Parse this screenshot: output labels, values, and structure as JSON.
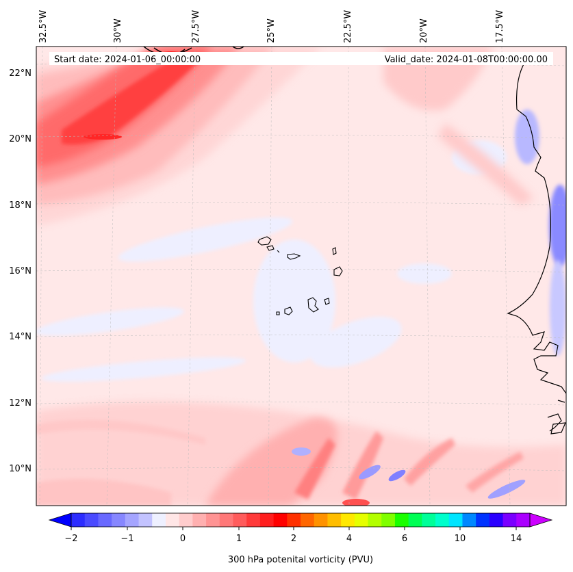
{
  "header": {
    "start_date": "Start date: 2024-01-06_00:00:00",
    "valid_date": "Valid_date: 2024-01-08T00:00:00.00"
  },
  "map": {
    "lon_labels": [
      "32.5°W",
      "30°W",
      "27.5°W",
      "25°W",
      "22.5°W",
      "20°W",
      "17.5°W"
    ],
    "lat_labels": [
      "22°N",
      "20°N",
      "18°N",
      "16°N",
      "14°N",
      "12°N",
      "10°N"
    ],
    "field": "300 hPa potential vorticity"
  },
  "colorbar": {
    "ticks": [
      "−2",
      "−1",
      "0",
      "1",
      "2",
      "4",
      "6",
      "10",
      "14"
    ],
    "label": "300 hPa potenital vorticity (PVU)",
    "colors": [
      "#0000ff",
      "#2929ff",
      "#5252ff",
      "#7a7aff",
      "#a3a3ff",
      "#cccccf",
      "#eeeeff",
      "#ffe6e6",
      "#ffcccc",
      "#ffadad",
      "#ff8a8a",
      "#ff6666",
      "#ff4444",
      "#ff2222",
      "#ff0000",
      "#ff3300",
      "#ff6600",
      "#ff9900",
      "#ffbb00",
      "#ffdd00",
      "#ffff00",
      "#ccff00",
      "#99ff00",
      "#33ff00",
      "#00ff44",
      "#00ff99",
      "#00ffcc",
      "#00eeff",
      "#0099ff",
      "#0044ff",
      "#0000ff",
      "#5500ff",
      "#aa00ff",
      "#dd00ff"
    ],
    "colors_main": [
      "#2d2dff",
      "#4b4bff",
      "#6969ff",
      "#8787ff",
      "#a5a5ff",
      "#c3c3ff",
      "#eef0ff",
      "#ffe6e6",
      "#ffcdcd",
      "#ffb0b0",
      "#ff9494",
      "#ff7878",
      "#ff5c5c",
      "#ff3a3a",
      "#ff1e1e",
      "#ff0000",
      "#ff3000",
      "#ff6600",
      "#ff9200",
      "#ffbd00",
      "#ffe800",
      "#e6ff00",
      "#b3ff00",
      "#7fff00",
      "#1aff00",
      "#00ff55",
      "#00ff99",
      "#00ffcc",
      "#00e5ff",
      "#0088ff",
      "#0033ff",
      "#2a00ff",
      "#7a00ff",
      "#aa00ff"
    ]
  }
}
